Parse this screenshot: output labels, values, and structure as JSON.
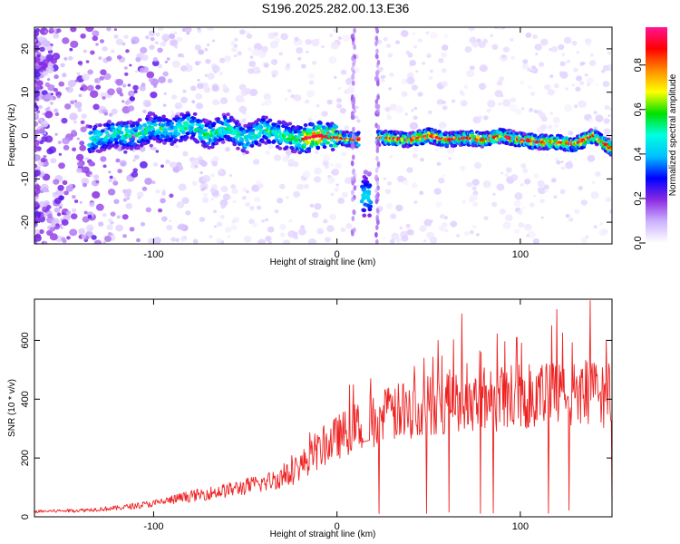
{
  "title": "S196.2025.282.00.13.E36",
  "chart_data": [
    {
      "type": "heatmap",
      "name": "spectrogram",
      "xlabel": "Height of straight line (km)",
      "ylabel": "Frequency (Hz)",
      "xlim": [
        -165,
        150
      ],
      "ylim": [
        -25,
        25
      ],
      "xticks": [
        -100,
        0,
        100
      ],
      "yticks": [
        -20,
        -10,
        0,
        10,
        20
      ],
      "colorbar": {
        "label": "Normalized spectral amplitude",
        "range": [
          0,
          0.97
        ],
        "ticks": [
          0.0,
          0.2,
          0.4,
          0.6,
          0.8
        ],
        "tick_labels": [
          "0.0",
          "0.2",
          "0.4",
          "0.6",
          "0.8"
        ],
        "colors": [
          "#ffffff",
          "#cdb2ff",
          "#8a2be2",
          "#0000ff",
          "#00bfff",
          "#00ffe0",
          "#00e000",
          "#ffff00",
          "#ff8c00",
          "#ff0000",
          "#ff1493"
        ]
      },
      "ridge": [
        {
          "x": -135,
          "y": -1.0
        },
        {
          "x": -120,
          "y": 0.5
        },
        {
          "x": -110,
          "y": 0.0
        },
        {
          "x": -100,
          "y": 2.0
        },
        {
          "x": -90,
          "y": 1.0
        },
        {
          "x": -80,
          "y": 2.5
        },
        {
          "x": -70,
          "y": 0.0
        },
        {
          "x": -60,
          "y": 2.0
        },
        {
          "x": -50,
          "y": -1.0
        },
        {
          "x": -40,
          "y": 1.5
        },
        {
          "x": -30,
          "y": 0.0
        },
        {
          "x": -20,
          "y": -1.0
        },
        {
          "x": -10,
          "y": 0.0
        },
        {
          "x": 0,
          "y": -0.5
        },
        {
          "x": 10,
          "y": -1.0
        },
        {
          "x": 25,
          "y": -0.5
        },
        {
          "x": 40,
          "y": -1.0
        },
        {
          "x": 50,
          "y": 0.0
        },
        {
          "x": 60,
          "y": -1.0
        },
        {
          "x": 70,
          "y": -0.5
        },
        {
          "x": 80,
          "y": -1.0
        },
        {
          "x": 90,
          "y": 0.0
        },
        {
          "x": 100,
          "y": -1.0
        },
        {
          "x": 110,
          "y": -1.5
        },
        {
          "x": 120,
          "y": -1.5
        },
        {
          "x": 130,
          "y": -2.0
        },
        {
          "x": 140,
          "y": 0.0
        },
        {
          "x": 150,
          "y": -3.0
        }
      ],
      "gap": [
        12,
        22
      ],
      "isolated_feature": {
        "x": 16,
        "y": -14,
        "value": 0.35
      }
    },
    {
      "type": "line",
      "name": "snr",
      "xlabel": "Height of straight line (km)",
      "ylabel": "SNR (10 * v/v)",
      "xlim": [
        -165,
        150
      ],
      "ylim": [
        0,
        740
      ],
      "xticks": [
        -100,
        0,
        100
      ],
      "yticks": [
        0,
        200,
        400,
        600
      ],
      "color": "#ee2222",
      "trend": [
        {
          "x": -165,
          "y": 18
        },
        {
          "x": -140,
          "y": 22
        },
        {
          "x": -120,
          "y": 30
        },
        {
          "x": -100,
          "y": 45
        },
        {
          "x": -80,
          "y": 70
        },
        {
          "x": -60,
          "y": 90
        },
        {
          "x": -40,
          "y": 115
        },
        {
          "x": -25,
          "y": 145
        },
        {
          "x": -15,
          "y": 200
        },
        {
          "x": 0,
          "y": 270
        },
        {
          "x": 15,
          "y": 320
        },
        {
          "x": 30,
          "y": 350
        },
        {
          "x": 50,
          "y": 380
        },
        {
          "x": 70,
          "y": 400
        },
        {
          "x": 90,
          "y": 405
        },
        {
          "x": 110,
          "y": 410
        },
        {
          "x": 130,
          "y": 415
        },
        {
          "x": 150,
          "y": 420
        }
      ],
      "peak": {
        "x": 138,
        "y": 735
      },
      "notable_spikes": [
        {
          "x": 68,
          "y": 690
        },
        {
          "x": 55,
          "y": 600
        },
        {
          "x": 117,
          "y": 650
        },
        {
          "x": 98,
          "y": 610
        },
        {
          "x": 120,
          "y": 705
        }
      ]
    }
  ]
}
